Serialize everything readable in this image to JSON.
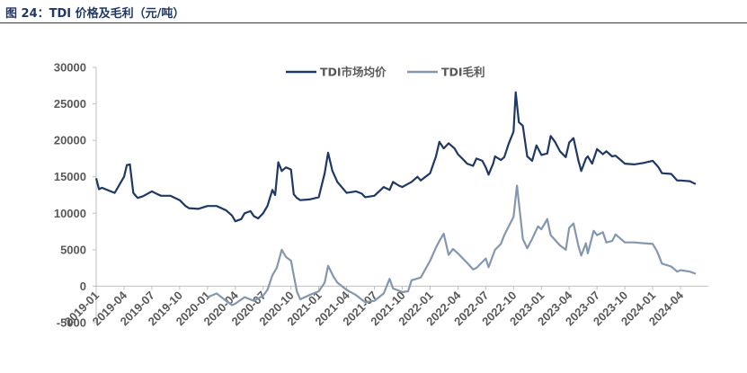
{
  "caption": "图 24：TDI 价格及毛利（元/吨）",
  "colors": {
    "price": "#1f3864",
    "margin": "#8497b0",
    "axis": "#bfbfbf",
    "text": "#595959"
  },
  "chart_data": {
    "type": "line",
    "title": "",
    "xlabel": "",
    "ylabel": "",
    "ylim": [
      -5000,
      30000
    ],
    "yticks": [
      "30000",
      "25000",
      "20000",
      "15000",
      "10000",
      "5000",
      "0",
      "-5000"
    ],
    "ytick_values": [
      30000,
      25000,
      20000,
      15000,
      10000,
      5000,
      0,
      -5000
    ],
    "xlim": [
      "2019-01",
      "2024-07"
    ],
    "xticks": [
      "2019-01",
      "2019-04",
      "2019-07",
      "2019-10",
      "2020-01",
      "2020-04",
      "2020-07",
      "2020-10",
      "2021-01",
      "2021-04",
      "2021-07",
      "2021-10",
      "2022-01",
      "2022-04",
      "2022-07",
      "2022-10",
      "2023-01",
      "2023-04",
      "2023-07",
      "2023-10",
      "2024-01",
      "2024-04"
    ],
    "legend_position": "top-center",
    "series": [
      {
        "name": "TDI市场均价",
        "points": [
          [
            "2019-01",
            14800
          ],
          [
            "2019-01-10",
            13300
          ],
          [
            "2019-01-20",
            13500
          ],
          [
            "2019-02",
            13300
          ],
          [
            "2019-03",
            12800
          ],
          [
            "2019-03-20",
            14200
          ],
          [
            "2019-04",
            15000
          ],
          [
            "2019-04-10",
            16600
          ],
          [
            "2019-04-20",
            16700
          ],
          [
            "2019-05",
            12800
          ],
          [
            "2019-05-15",
            12100
          ],
          [
            "2019-06",
            12300
          ],
          [
            "2019-07",
            13000
          ],
          [
            "2019-07-20",
            12600
          ],
          [
            "2019-08",
            12400
          ],
          [
            "2019-09",
            12400
          ],
          [
            "2019-10",
            11800
          ],
          [
            "2019-10-20",
            11000
          ],
          [
            "2019-11",
            10700
          ],
          [
            "2019-12",
            10600
          ],
          [
            "2020-01",
            11000
          ],
          [
            "2020-02",
            11000
          ],
          [
            "2020-03",
            10400
          ],
          [
            "2020-03-20",
            9700
          ],
          [
            "2020-04",
            8900
          ],
          [
            "2020-04-20",
            9200
          ],
          [
            "2020-05",
            10000
          ],
          [
            "2020-05-20",
            10300
          ],
          [
            "2020-06",
            9600
          ],
          [
            "2020-06-15",
            9300
          ],
          [
            "2020-07",
            10000
          ],
          [
            "2020-07-15",
            11000
          ],
          [
            "2020-08",
            13200
          ],
          [
            "2020-08-10",
            12500
          ],
          [
            "2020-08-20",
            17000
          ],
          [
            "2020-09",
            15800
          ],
          [
            "2020-09-15",
            16300
          ],
          [
            "2020-10",
            16000
          ],
          [
            "2020-10-10",
            12600
          ],
          [
            "2020-10-20",
            12100
          ],
          [
            "2020-11",
            11800
          ],
          [
            "2020-12",
            11900
          ],
          [
            "2021-01",
            12200
          ],
          [
            "2021-01-20",
            15500
          ],
          [
            "2021-02",
            18300
          ],
          [
            "2021-02-15",
            15800
          ],
          [
            "2021-03",
            14300
          ],
          [
            "2021-04",
            12800
          ],
          [
            "2021-05",
            13000
          ],
          [
            "2021-05-20",
            12700
          ],
          [
            "2021-06",
            12200
          ],
          [
            "2021-07",
            12400
          ],
          [
            "2021-08",
            13600
          ],
          [
            "2021-08-20",
            13200
          ],
          [
            "2021-09",
            14300
          ],
          [
            "2021-09-20",
            13800
          ],
          [
            "2021-10",
            13600
          ],
          [
            "2021-11",
            14300
          ],
          [
            "2021-11-20",
            15000
          ],
          [
            "2021-12",
            14500
          ],
          [
            "2022-01",
            15500
          ],
          [
            "2022-01-20",
            17800
          ],
          [
            "2022-02",
            19800
          ],
          [
            "2022-02-15",
            18900
          ],
          [
            "2022-03",
            19600
          ],
          [
            "2022-03-20",
            18900
          ],
          [
            "2022-04",
            18100
          ],
          [
            "2022-04-15",
            17500
          ],
          [
            "2022-05",
            16800
          ],
          [
            "2022-05-20",
            16500
          ],
          [
            "2022-06",
            17500
          ],
          [
            "2022-06-20",
            17200
          ],
          [
            "2022-07",
            16300
          ],
          [
            "2022-07-10",
            15300
          ],
          [
            "2022-07-25",
            16800
          ],
          [
            "2022-08",
            17800
          ],
          [
            "2022-08-20",
            17300
          ],
          [
            "2022-09",
            17700
          ],
          [
            "2022-09-15",
            19500
          ],
          [
            "2022-10",
            21200
          ],
          [
            "2022-10-08",
            26600
          ],
          [
            "2022-10-18",
            22500
          ],
          [
            "2022-11",
            22000
          ],
          [
            "2022-11-15",
            17800
          ],
          [
            "2022-12",
            17200
          ],
          [
            "2022-12-15",
            19300
          ],
          [
            "2023-01",
            18000
          ],
          [
            "2023-01-20",
            18200
          ],
          [
            "2023-02",
            20600
          ],
          [
            "2023-02-15",
            19800
          ],
          [
            "2023-03",
            18500
          ],
          [
            "2023-03-20",
            17700
          ],
          [
            "2023-04",
            19700
          ],
          [
            "2023-04-15",
            20300
          ],
          [
            "2023-05",
            17200
          ],
          [
            "2023-05-10",
            15800
          ],
          [
            "2023-05-25",
            17500
          ],
          [
            "2023-06",
            17800
          ],
          [
            "2023-06-15",
            16800
          ],
          [
            "2023-07",
            18800
          ],
          [
            "2023-07-20",
            18100
          ],
          [
            "2023-08",
            18500
          ],
          [
            "2023-08-20",
            17800
          ],
          [
            "2023-09",
            17900
          ],
          [
            "2023-10",
            16800
          ],
          [
            "2023-11",
            16700
          ],
          [
            "2023-12",
            16900
          ],
          [
            "2024-01",
            17200
          ],
          [
            "2024-01-20",
            16300
          ],
          [
            "2024-02",
            15500
          ],
          [
            "2024-03",
            15400
          ],
          [
            "2024-03-20",
            14500
          ],
          [
            "2024-04",
            14500
          ],
          [
            "2024-05",
            14400
          ],
          [
            "2024-05-20",
            14000
          ]
        ]
      },
      {
        "name": "TDI毛利",
        "points": [
          [
            "2020-01",
            -1500
          ],
          [
            "2020-02",
            -1000
          ],
          [
            "2020-03",
            -2000
          ],
          [
            "2020-03-20",
            -2600
          ],
          [
            "2020-04",
            -2400
          ],
          [
            "2020-05",
            -1500
          ],
          [
            "2020-06",
            -2000
          ],
          [
            "2020-07",
            -1300
          ],
          [
            "2020-07-15",
            -500
          ],
          [
            "2020-08",
            1500
          ],
          [
            "2020-08-15",
            2500
          ],
          [
            "2020-09",
            5000
          ],
          [
            "2020-09-15",
            4000
          ],
          [
            "2020-10",
            3500
          ],
          [
            "2020-10-10",
            1500
          ],
          [
            "2020-10-20",
            -700
          ],
          [
            "2020-11",
            -1800
          ],
          [
            "2020-12",
            -1200
          ],
          [
            "2021-01",
            -700
          ],
          [
            "2021-01-20",
            500
          ],
          [
            "2021-02",
            2800
          ],
          [
            "2021-02-20",
            1200
          ],
          [
            "2021-03",
            500
          ],
          [
            "2021-04",
            -500
          ],
          [
            "2021-05",
            -1200
          ],
          [
            "2021-06",
            -2200
          ],
          [
            "2021-07",
            -2000
          ],
          [
            "2021-08",
            -1000
          ],
          [
            "2021-08-20",
            1000
          ],
          [
            "2021-09",
            -300
          ],
          [
            "2021-10",
            -800
          ],
          [
            "2021-10-20",
            -700
          ],
          [
            "2021-11",
            800
          ],
          [
            "2021-12",
            1200
          ],
          [
            "2022-01",
            3500
          ],
          [
            "2022-01-20",
            5300
          ],
          [
            "2022-02",
            6200
          ],
          [
            "2022-02-15",
            7200
          ],
          [
            "2022-03",
            4300
          ],
          [
            "2022-03-15",
            5100
          ],
          [
            "2022-04",
            4500
          ],
          [
            "2022-05",
            3200
          ],
          [
            "2022-05-20",
            2300
          ],
          [
            "2022-06",
            2500
          ],
          [
            "2022-07",
            3800
          ],
          [
            "2022-07-10",
            2600
          ],
          [
            "2022-08",
            5000
          ],
          [
            "2022-08-20",
            5800
          ],
          [
            "2022-09",
            7000
          ],
          [
            "2022-10",
            9500
          ],
          [
            "2022-10-12",
            13800
          ],
          [
            "2022-10-25",
            8800
          ],
          [
            "2022-11",
            6500
          ],
          [
            "2022-11-15",
            5200
          ],
          [
            "2022-12",
            6500
          ],
          [
            "2022-12-20",
            8200
          ],
          [
            "2023-01",
            7800
          ],
          [
            "2023-01-20",
            9200
          ],
          [
            "2023-02",
            7000
          ],
          [
            "2023-03",
            5600
          ],
          [
            "2023-03-20",
            5000
          ],
          [
            "2023-04",
            8000
          ],
          [
            "2023-04-15",
            8600
          ],
          [
            "2023-05",
            5500
          ],
          [
            "2023-05-10",
            4200
          ],
          [
            "2023-05-25",
            5900
          ],
          [
            "2023-06",
            4500
          ],
          [
            "2023-06-20",
            7600
          ],
          [
            "2023-07",
            7000
          ],
          [
            "2023-07-20",
            7400
          ],
          [
            "2023-08",
            6000
          ],
          [
            "2023-08-20",
            6200
          ],
          [
            "2023-09",
            7100
          ],
          [
            "2023-10",
            6000
          ],
          [
            "2023-11",
            6000
          ],
          [
            "2023-12",
            5900
          ],
          [
            "2024-01",
            5800
          ],
          [
            "2024-01-15",
            4800
          ],
          [
            "2024-02",
            3100
          ],
          [
            "2024-03",
            2700
          ],
          [
            "2024-03-20",
            2000
          ],
          [
            "2024-04",
            2200
          ],
          [
            "2024-05",
            2000
          ],
          [
            "2024-05-20",
            1700
          ]
        ]
      }
    ]
  }
}
